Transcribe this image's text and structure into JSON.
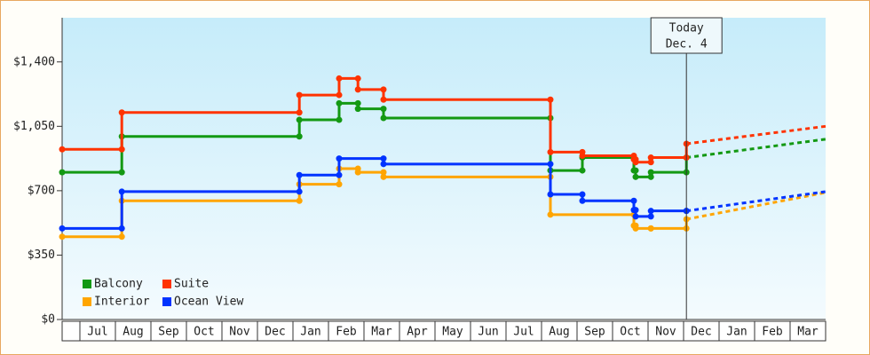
{
  "chart_data": {
    "type": "step-line",
    "xlim": [
      0.5,
      22
    ],
    "ylim": [
      0,
      1640
    ],
    "xticks": [
      {
        "value": 1.5,
        "label": "Jul"
      },
      {
        "value": 2.5,
        "label": "Aug"
      },
      {
        "value": 3.5,
        "label": "Sep"
      },
      {
        "value": 4.5,
        "label": "Oct"
      },
      {
        "value": 5.5,
        "label": "Nov"
      },
      {
        "value": 6.5,
        "label": "Dec"
      },
      {
        "value": 7.5,
        "label": "Jan"
      },
      {
        "value": 8.5,
        "label": "Feb"
      },
      {
        "value": 9.5,
        "label": "Mar"
      },
      {
        "value": 10.5,
        "label": "Apr"
      },
      {
        "value": 11.5,
        "label": "May"
      },
      {
        "value": 12.5,
        "label": "Jun"
      },
      {
        "value": 13.5,
        "label": "Jul"
      },
      {
        "value": 14.5,
        "label": "Aug"
      },
      {
        "value": 15.5,
        "label": "Sep"
      },
      {
        "value": 16.5,
        "label": "Oct"
      },
      {
        "value": 17.5,
        "label": "Nov"
      },
      {
        "value": 18.5,
        "label": "Dec"
      },
      {
        "value": 19.5,
        "label": "Jan"
      },
      {
        "value": 20.5,
        "label": "Feb"
      },
      {
        "value": 21.5,
        "label": "Mar"
      }
    ],
    "yticks": [
      {
        "value": 0,
        "label": "$0"
      },
      {
        "value": 350,
        "label": "$350"
      },
      {
        "value": 700,
        "label": "$700"
      },
      {
        "value": 1050,
        "label": "$1,050"
      },
      {
        "value": 1400,
        "label": "$1,400"
      }
    ],
    "today": {
      "x": 18.08,
      "label": [
        "Today",
        "Dec. 4"
      ]
    },
    "series": [
      {
        "name": "Balcony",
        "color": "#139913",
        "x": [
          0.5,
          2.18,
          7.18,
          8.3,
          8.83,
          9.55,
          14.25,
          15.15,
          16.6,
          16.65,
          17.08,
          18.08
        ],
        "values": [
          800,
          995,
          1085,
          1175,
          1145,
          1095,
          810,
          880,
          810,
          775,
          800,
          880
        ],
        "forecast_x": [
          18.08,
          22
        ],
        "forecast_values": [
          880,
          980
        ]
      },
      {
        "name": "Suite",
        "color": "#ff3300",
        "x": [
          0.5,
          2.18,
          7.18,
          8.3,
          8.83,
          9.55,
          14.25,
          15.15,
          16.6,
          16.65,
          17.08,
          18.08
        ],
        "values": [
          925,
          1125,
          1220,
          1310,
          1250,
          1195,
          910,
          890,
          870,
          855,
          880,
          955
        ],
        "forecast_x": [
          18.08,
          22
        ],
        "forecast_values": [
          955,
          1050
        ]
      },
      {
        "name": "Interior",
        "color": "#ffa500",
        "x": [
          0.5,
          2.18,
          7.18,
          8.3,
          8.83,
          9.55,
          14.25,
          16.6,
          16.65,
          17.08,
          18.08
        ],
        "values": [
          450,
          645,
          735,
          820,
          800,
          775,
          570,
          510,
          495,
          495,
          545
        ],
        "forecast_x": [
          18.08,
          22
        ],
        "forecast_values": [
          545,
          690
        ]
      },
      {
        "name": "Ocean View",
        "color": "#0033ff",
        "x": [
          0.5,
          2.18,
          7.18,
          8.3,
          9.55,
          14.25,
          15.15,
          16.6,
          16.65,
          17.08,
          18.08
        ],
        "values": [
          495,
          695,
          785,
          875,
          845,
          680,
          645,
          595,
          560,
          590,
          590
        ],
        "forecast_x": [
          18.08,
          22
        ],
        "forecast_values": [
          590,
          695
        ]
      }
    ]
  }
}
